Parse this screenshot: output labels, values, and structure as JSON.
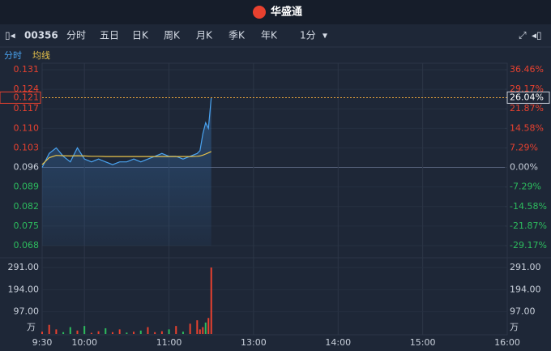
{
  "header": {
    "title": "华盛通"
  },
  "toolbar": {
    "code": "00356",
    "tabs": [
      "分时",
      "五日",
      "日K",
      "周K",
      "月K",
      "季K",
      "年K",
      "1分"
    ]
  },
  "subtabs": [
    "分时",
    "均线"
  ],
  "chart_data": {
    "type": "line",
    "x": [
      0,
      5,
      10,
      15,
      20,
      25,
      30,
      35,
      40,
      45,
      50,
      55,
      60,
      65,
      70,
      75,
      80,
      85,
      90,
      95,
      100,
      105,
      110,
      112,
      114,
      116,
      118,
      120
    ],
    "xlim": [
      0,
      330
    ],
    "xticks": [
      {
        "value": 0,
        "label": "9:30"
      },
      {
        "value": 30,
        "label": "10:00"
      },
      {
        "value": 90,
        "label": "11:00"
      },
      {
        "value": 150,
        "label": "13:00"
      },
      {
        "value": 210,
        "label": "14:00"
      },
      {
        "value": 270,
        "label": "15:00"
      },
      {
        "value": 330,
        "label": "16:00"
      }
    ],
    "ylim": [
      0.068,
      0.131
    ],
    "yticks": [
      0.068,
      0.075,
      0.082,
      0.089,
      0.096,
      0.103,
      {
        "value": 0.11,
        "label": "0.110"
      },
      0.117,
      0.124,
      0.131
    ],
    "y2lim": [
      -29.17,
      36.46
    ],
    "y2ticks": [
      {
        "value": -29.17,
        "label": "-29.17%"
      },
      {
        "value": -21.87,
        "label": "-21.87%"
      },
      {
        "value": -14.58,
        "label": "-14.58%"
      },
      {
        "value": -7.29,
        "label": "-7.29%"
      },
      {
        "value": 0,
        "label": "0.00%"
      },
      {
        "value": 7.29,
        "label": "7.29%"
      },
      {
        "value": 14.58,
        "label": "14.58%"
      },
      {
        "value": 21.87,
        "label": "21.87%"
      },
      {
        "value": 29.17,
        "label": "29.17%"
      },
      {
        "value": 36.46,
        "label": "36.46%"
      }
    ],
    "series": [
      {
        "name": "分时",
        "color": "#4aa3f0",
        "values": [
          0.096,
          0.101,
          0.103,
          0.1,
          0.098,
          0.103,
          0.099,
          0.098,
          0.099,
          0.098,
          0.097,
          0.098,
          0.098,
          0.099,
          0.098,
          0.099,
          0.1,
          0.101,
          0.1,
          0.1,
          0.099,
          0.1,
          0.101,
          0.102,
          0.108,
          0.112,
          0.11,
          0.121
        ]
      },
      {
        "name": "均线",
        "color": "#e8c34a",
        "values": [
          0.097,
          0.0995,
          0.1003,
          0.1002,
          0.1001,
          0.1002,
          0.1001,
          0.1,
          0.1,
          0.0999,
          0.0999,
          0.0999,
          0.0999,
          0.0999,
          0.0999,
          0.0999,
          0.0999,
          0.0999,
          0.0999,
          0.0999,
          0.0999,
          0.0999,
          0.1,
          0.1001,
          0.1004,
          0.1008,
          0.1012,
          0.1017
        ]
      }
    ],
    "last_price": 0.121,
    "last_change": {
      "value": 26.04,
      "label": "26.04%"
    },
    "volume": {
      "unit": "万",
      "ylim": [
        0,
        291
      ],
      "yticks": [
        {
          "value": 97,
          "label": "97.00"
        },
        {
          "value": 194,
          "label": "194.00"
        },
        {
          "value": 291,
          "label": "291.00"
        }
      ],
      "values": [
        10,
        40,
        20,
        8,
        30,
        15,
        35,
        5,
        12,
        25,
        8,
        20,
        6,
        10,
        15,
        30,
        8,
        12,
        20,
        35,
        10,
        45,
        60,
        20,
        30,
        50,
        70,
        291
      ],
      "colors": [
        "#e8412f",
        "#e8412f",
        "#e8412f",
        "#2dbc5e",
        "#2dbc5e",
        "#e8412f",
        "#2dbc5e",
        "#e8412f",
        "#e8412f",
        "#2dbc5e",
        "#e8412f",
        "#e8412f",
        "#2dbc5e",
        "#e8412f",
        "#2dbc5e",
        "#e8412f",
        "#e8412f",
        "#e8412f",
        "#2dbc5e",
        "#e8412f",
        "#2dbc5e",
        "#e8412f",
        "#e8412f",
        "#e8412f",
        "#e8412f",
        "#2dbc5e",
        "#e8412f",
        "#e8412f"
      ]
    }
  }
}
